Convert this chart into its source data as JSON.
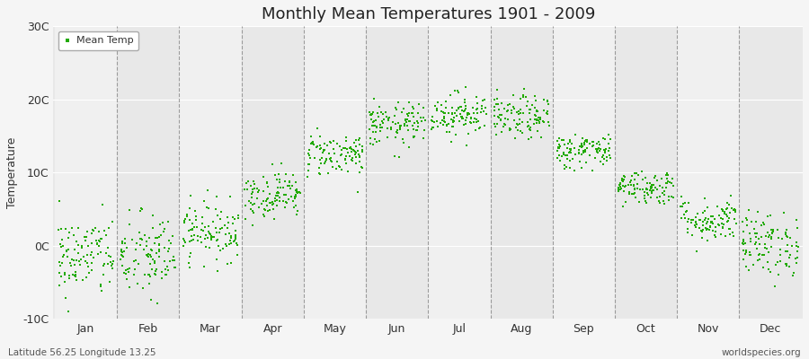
{
  "title": "Monthly Mean Temperatures 1901 - 2009",
  "ylabel": "Temperature",
  "subtitle_left": "Latitude 56.25 Longitude 13.25",
  "subtitle_right": "worldspecies.org",
  "dot_color": "#22aa00",
  "fig_color": "#f5f5f5",
  "plot_bg_color": "#e8e8e8",
  "band_color": "#f0f0f0",
  "ylim": [
    -10,
    30
  ],
  "yticks": [
    -10,
    0,
    10,
    20,
    30
  ],
  "ytick_labels": [
    "-10C",
    "0C",
    "10C",
    "20C",
    "30C"
  ],
  "months": [
    "Jan",
    "Feb",
    "Mar",
    "Apr",
    "May",
    "Jun",
    "Jul",
    "Aug",
    "Sep",
    "Oct",
    "Nov",
    "Dec"
  ],
  "mean_temps": [
    -1.5,
    -1.5,
    2.0,
    7.0,
    12.5,
    16.5,
    18.0,
    17.5,
    13.0,
    8.0,
    3.5,
    0.2
  ],
  "std_temps": [
    2.8,
    3.0,
    2.0,
    1.6,
    1.5,
    1.5,
    1.5,
    1.5,
    1.2,
    1.2,
    1.5,
    2.2
  ],
  "n_years": 109,
  "seed": 42,
  "dot_size": 3,
  "title_fontsize": 13,
  "label_fontsize": 9,
  "tick_fontsize": 9
}
